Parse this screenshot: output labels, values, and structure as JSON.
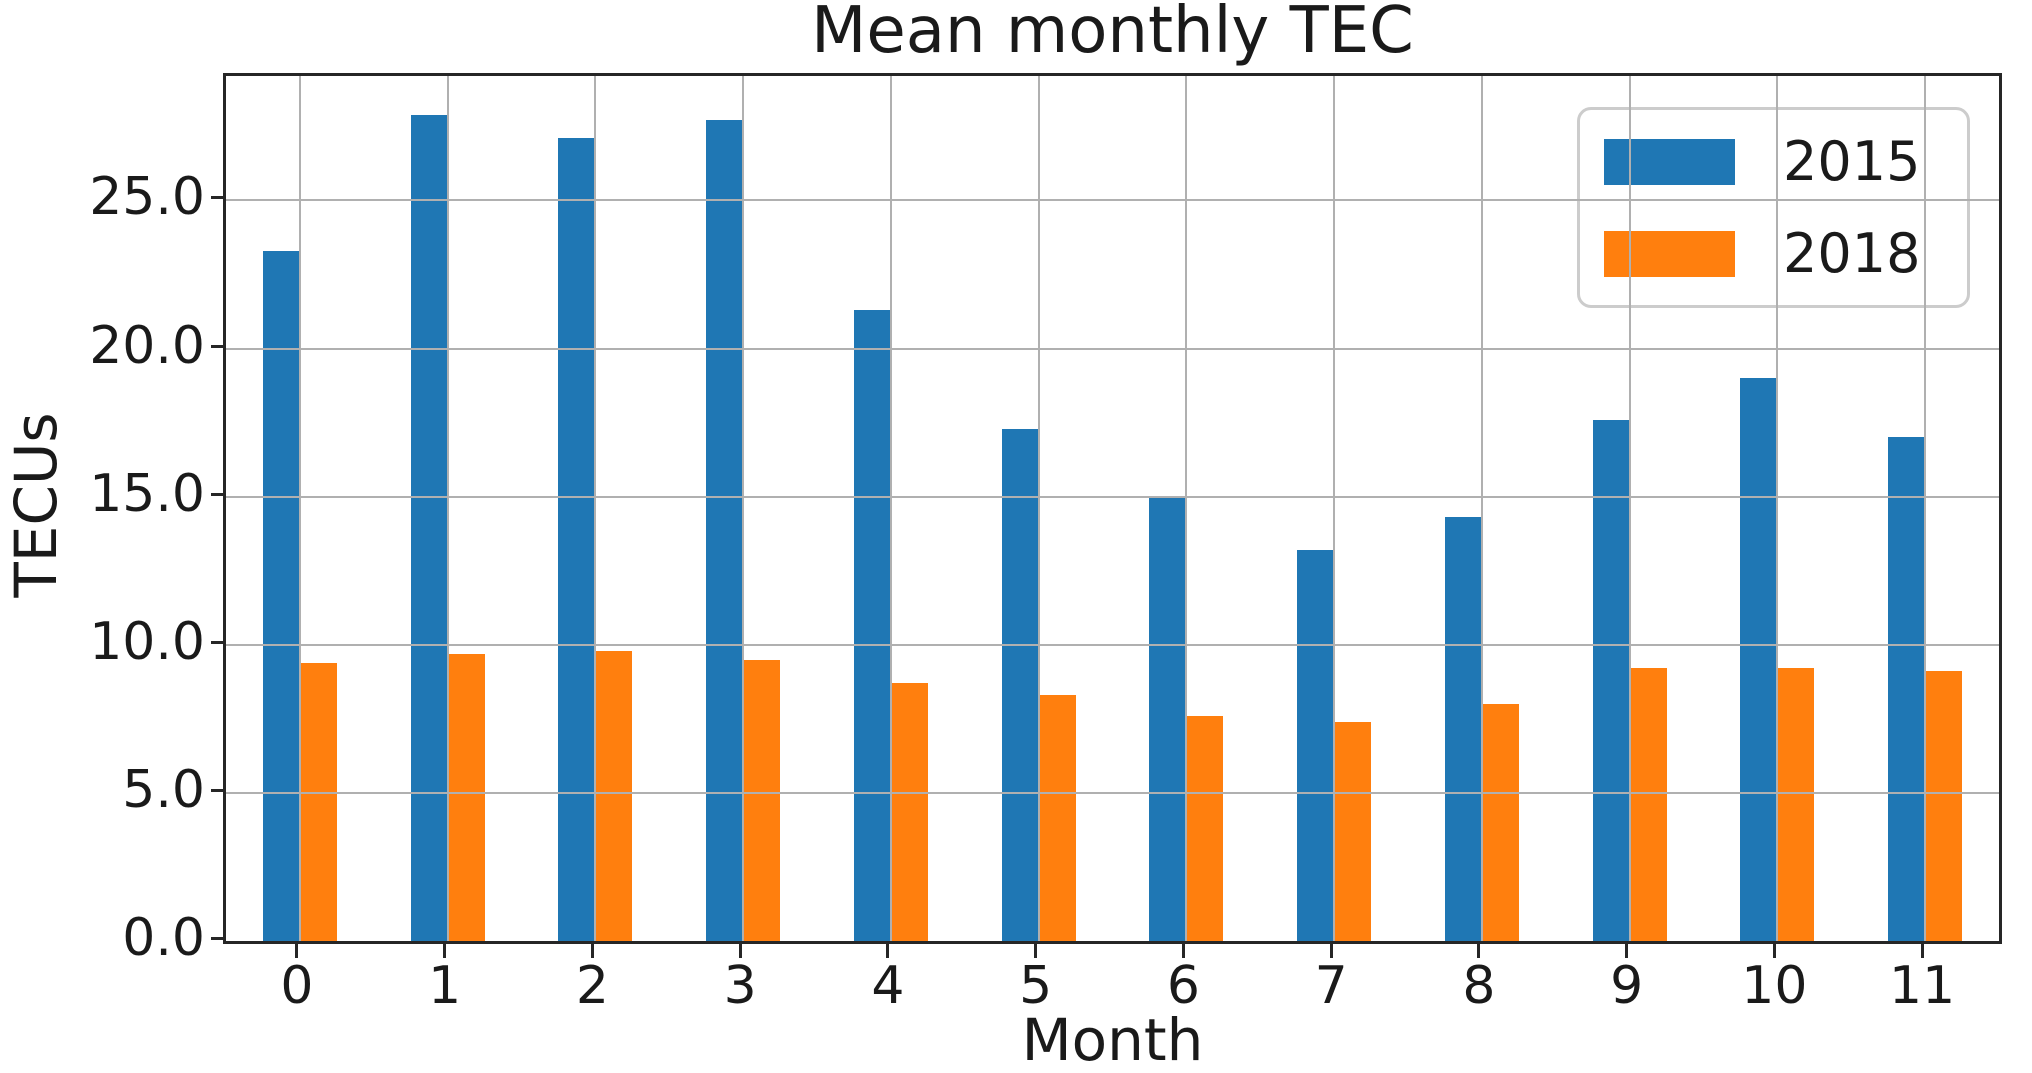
{
  "chart_data": {
    "type": "bar",
    "title": "Mean monthly TEC",
    "xlabel": "Month",
    "ylabel": "TECUs",
    "categories": [
      "0",
      "1",
      "2",
      "3",
      "4",
      "5",
      "6",
      "7",
      "8",
      "9",
      "10",
      "11"
    ],
    "series": [
      {
        "name": "2015",
        "color": "#1f77b4",
        "values": [
          23.3,
          27.9,
          27.1,
          27.7,
          21.3,
          17.3,
          15.0,
          13.2,
          14.3,
          17.6,
          19.0,
          17.0
        ]
      },
      {
        "name": "2018",
        "color": "#ff7f0e",
        "values": [
          9.4,
          9.7,
          9.8,
          9.5,
          8.7,
          8.3,
          7.6,
          7.4,
          8.0,
          9.2,
          9.2,
          9.1
        ]
      }
    ],
    "ylim": [
      0,
      29.2
    ],
    "y_ticks": [
      0,
      5,
      10,
      15,
      20,
      25
    ],
    "y_tick_labels": [
      "0.0",
      "5.0",
      "10.0",
      "15.0",
      "20.0",
      "25.0"
    ],
    "grid": true,
    "grid_on_top": true,
    "legend_position": "upper right"
  },
  "colors": {
    "grid": "#b0b0b0",
    "spine": "#262626",
    "text": "#1a1a1a",
    "legend_border": "#cccccc",
    "background": "#ffffff"
  }
}
